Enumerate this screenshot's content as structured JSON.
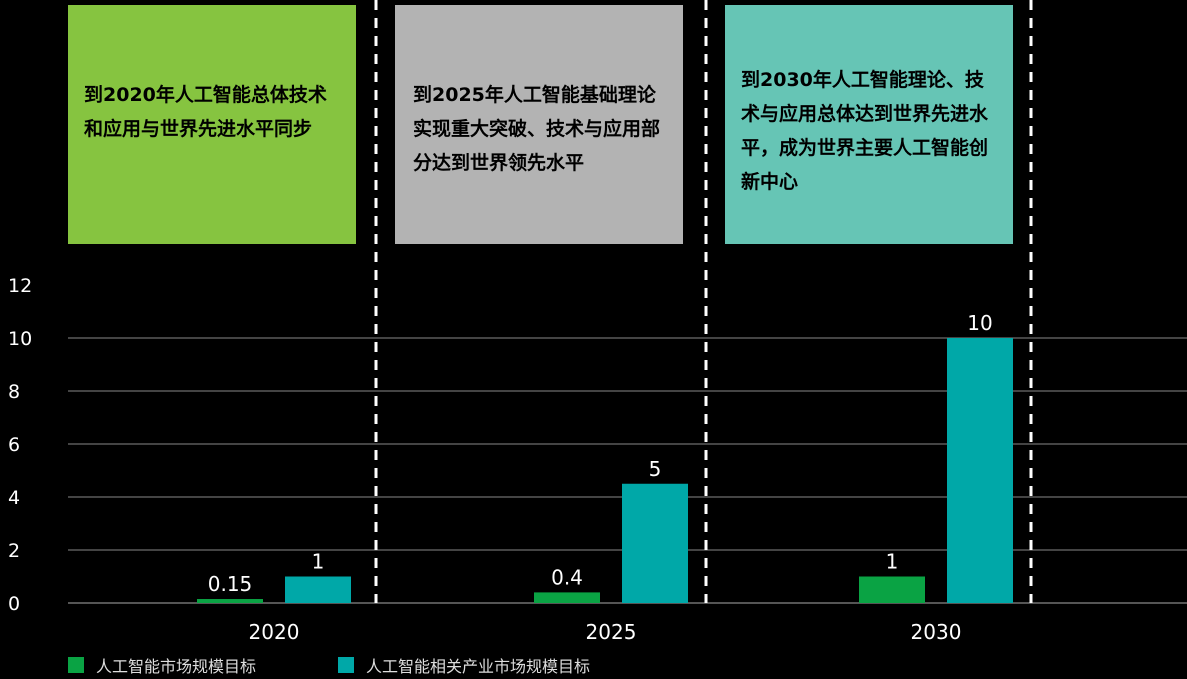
{
  "goals": [
    {
      "text": "到2020年人工智能总体技术和应用与世界先进水平同步",
      "color": "#86c440"
    },
    {
      "text": "到2025年人工智能基础理论实现重大突破、技术与应用部分达到世界领先水平",
      "color": "#b3b3b3"
    },
    {
      "text": "到2030年人工智能理论、技术与应用总体达到世界先进水平，成为世界主要人工智能创新中心",
      "color": "#66c5b5"
    }
  ],
  "chart_data": {
    "type": "bar",
    "categories": [
      "2020",
      "2025",
      "2030"
    ],
    "series": [
      {
        "name": "人工智能市场规模目标",
        "values": [
          0.15,
          0.4,
          1
        ],
        "labels": [
          "0.15",
          "0.4",
          "1"
        ],
        "color": "#0aa344"
      },
      {
        "name": "人工智能相关产业市场规模目标",
        "values": [
          1,
          4.5,
          10
        ],
        "labels": [
          "1",
          "5",
          "10"
        ],
        "color": "#00a8a8"
      }
    ],
    "ylim": [
      0,
      12
    ],
    "yticks": [
      0,
      2,
      4,
      6,
      8,
      10,
      12
    ],
    "grid": true,
    "legend_position": "bottom-left"
  }
}
